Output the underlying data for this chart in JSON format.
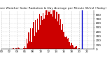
{
  "title": "Milwaukee Weather Solar Radiation & Day Average per Minute W/m2 (Today)",
  "bg_color": "#ffffff",
  "bar_color": "#cc0000",
  "line_color": "#0000cc",
  "grid_color": "#bbbbbb",
  "ylim": [
    0,
    900
  ],
  "yticks": [
    0,
    100,
    200,
    300,
    400,
    500,
    600,
    700,
    800
  ],
  "ylabel_fontsize": 3.0,
  "title_fontsize": 3.2,
  "current_time_index": 83,
  "n_points": 96,
  "n_vertical_grids": 12
}
